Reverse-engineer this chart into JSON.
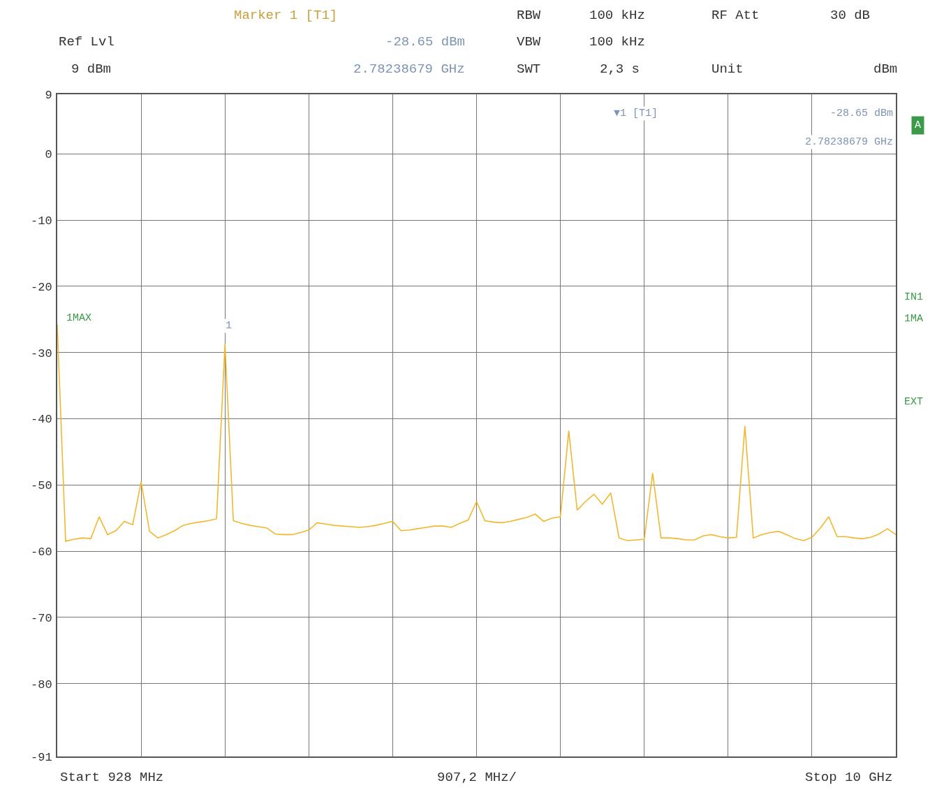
{
  "chart_data": {
    "type": "line",
    "categories": [
      null,
      null,
      null,
      null,
      null,
      null,
      null,
      null,
      null,
      null,
      null,
      null,
      null,
      null,
      null,
      null,
      null,
      null,
      null,
      null,
      null,
      null,
      null,
      null,
      null,
      null,
      null,
      null,
      null,
      null,
      null,
      null,
      null,
      null,
      null,
      null,
      null,
      null,
      null,
      null,
      null,
      null,
      null,
      null,
      null,
      null,
      null,
      null,
      null,
      null,
      null,
      null,
      null,
      null,
      null,
      null,
      null,
      null,
      null,
      null,
      null,
      null,
      null,
      null,
      null,
      null,
      null,
      null,
      null,
      null,
      null,
      null,
      null,
      null,
      null,
      null,
      null,
      null,
      null,
      null,
      null,
      null,
      null,
      null,
      null,
      null,
      null,
      null,
      null,
      null,
      null,
      null,
      null,
      null,
      null,
      null,
      null,
      null,
      null,
      null,
      null
    ],
    "ylim": [
      -91,
      9
    ],
    "yticks": [
      9,
      0,
      -10,
      -20,
      -30,
      -40,
      -50,
      -60,
      -70,
      -80,
      -91
    ],
    "grid": true,
    "marker": "none",
    "line_style": "solid",
    "series": [
      {
        "color": "#f0b830",
        "values": [
          -25.8,
          -58.5,
          -58.2,
          -58.0,
          -58.1,
          -54.8,
          -57.5,
          -56.9,
          -55.5,
          -56.0,
          -49.5,
          -57.0,
          -58.0,
          -57.5,
          -56.9,
          -56.1,
          -55.8,
          -55.6,
          -55.4,
          -55.1,
          -28.7,
          -55.4,
          -55.8,
          -56.1,
          -56.3,
          -56.5,
          -57.4,
          -57.5,
          -57.5,
          -57.2,
          -56.8,
          -55.7,
          -55.9,
          -56.1,
          -56.2,
          -56.3,
          -56.4,
          -56.3,
          -56.1,
          -55.8,
          -55.5,
          -56.9,
          -56.8,
          -56.6,
          -56.4,
          -56.2,
          -56.2,
          -56.4,
          -55.8,
          -55.3,
          -52.5,
          -55.4,
          -55.6,
          -55.7,
          -55.5,
          -55.2,
          -54.9,
          -54.4,
          -55.5,
          -55.0,
          -54.8,
          -41.8,
          -53.8,
          -52.5,
          -51.4,
          -52.9,
          -51.2,
          -58.0,
          -58.4,
          -58.3,
          -58.2,
          -48.2,
          -58.0,
          -58.0,
          -58.1,
          -58.3,
          -58.3,
          -57.7,
          -57.5,
          -57.8,
          -58.0,
          -57.9,
          -41.1,
          -58.0,
          -57.5,
          -57.2,
          -57.0,
          -57.5,
          -58.1,
          -58.4,
          -57.9,
          -56.5,
          -54.8,
          -57.8,
          -57.8,
          -58.0,
          -58.1,
          -57.9,
          -57.4,
          -56.6,
          -57.5
        ]
      }
    ],
    "annotations": [
      "Marker 1 [T1]",
      "Ref Lvl",
      "9 dBm",
      "-28.65 dBm",
      "2.78238679 GHz",
      "RBW",
      "100 kHz",
      "VBW",
      "100 kHz",
      "SWT",
      "2,3 s",
      "RF Att",
      "30 dB",
      "Unit",
      "dBm",
      "▼1 [T1]",
      "-28.65 dBm",
      "2.78238679 GHz",
      "1MAX",
      "A",
      "IN1",
      "1MA",
      "EXT",
      "Start 928 MHz",
      "907,2 MHz/",
      "Stop 10 GHz",
      "1"
    ]
  }
}
